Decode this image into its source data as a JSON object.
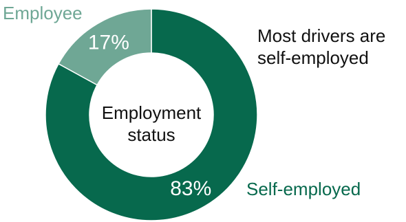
{
  "chart_data": {
    "type": "pie",
    "categories": [
      "Self-employed",
      "Employee"
    ],
    "values": [
      83,
      17
    ],
    "value_labels": [
      "83%",
      "17%"
    ],
    "colors": [
      "#07694d",
      "#6fa795"
    ],
    "title": "",
    "center_label": [
      "Employment",
      "status"
    ],
    "annotation": [
      "Most drivers are",
      "self-employed"
    ],
    "legend": "none"
  }
}
